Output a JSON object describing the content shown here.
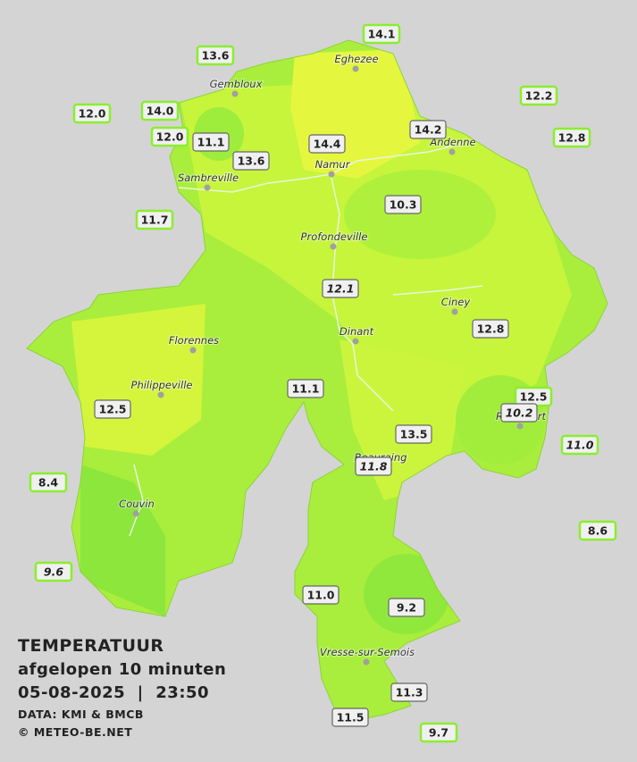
{
  "title": "TEMPERATUUR",
  "subtitle": "afgelopen 10 minuten",
  "datetime": "05-08-2025  |  23:50",
  "source": "DATA: KMI & BMCB",
  "copyright": "© METEO-BE.NET",
  "cities": [
    "Eghezee",
    "Gembloux",
    "Andenne",
    "Namur",
    "Sambreville",
    "Profondeville",
    "Ciney",
    "Dinant",
    "Florennes",
    "Philippeville",
    "Rochefort",
    "Beauraing",
    "Couvin",
    "Vresse-sur-Semois"
  ],
  "stations": [
    "14.1",
    "13.6",
    "12.2",
    "12.0",
    "14.0",
    "12.0",
    "11.1",
    "13.6",
    "14.4",
    "14.2",
    "12.8",
    "10.3",
    "11.7",
    "12.1",
    "12.8",
    "11.1",
    "12.5",
    "10.2",
    "12.5",
    "11.0",
    "13.5",
    "11.8",
    "8.4",
    "8.6",
    "9.6",
    "11.0",
    "9.2",
    "11.3",
    "11.5",
    "9.7"
  ]
}
